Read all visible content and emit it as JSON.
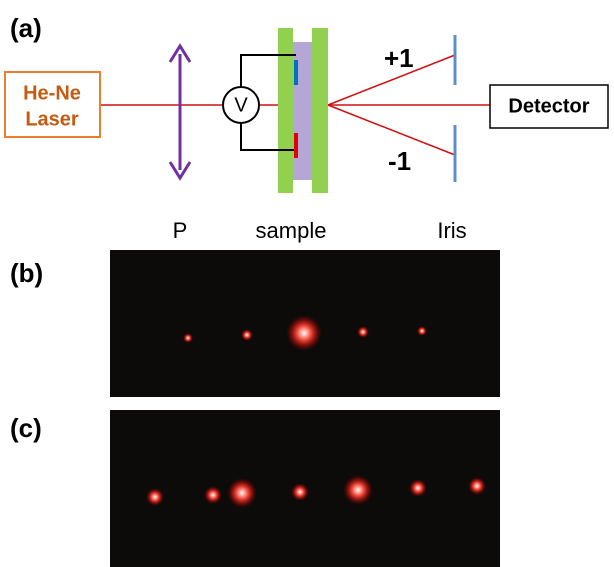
{
  "panels": {
    "a": "(a)",
    "b": "(b)",
    "c": "(c)"
  },
  "laser": {
    "line1": "He-Ne",
    "line2": "Laser"
  },
  "voltmeter": "V",
  "orders": {
    "plus": "+1",
    "minus": "-1"
  },
  "detector": "Detector",
  "labels": {
    "polarizer": "P",
    "sample": "sample",
    "iris": "Iris"
  }
}
